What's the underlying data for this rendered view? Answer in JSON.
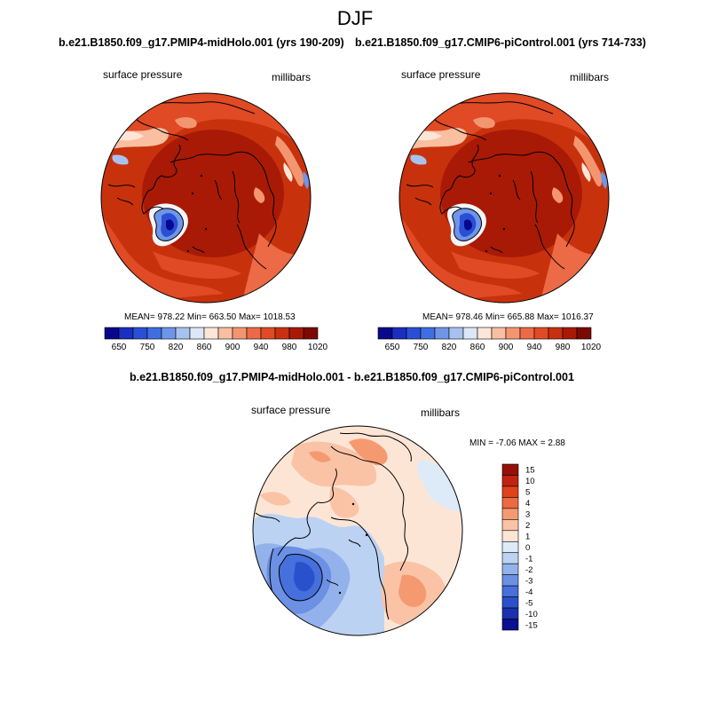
{
  "page": {
    "title": "DJF"
  },
  "panel_left": {
    "case_title": "b.e21.B1850.f09_g17.PMIP4-midHolo.001 (yrs 190-209)",
    "variable": "surface pressure",
    "units": "millibars",
    "stats": "MEAN= 978.22  Min= 663.50  Max= 1018.53"
  },
  "panel_right": {
    "case_title": "b.e21.B1850.f09_g17.CMIP6-piControl.001 (yrs 714-733)",
    "variable": "surface pressure",
    "units": "millibars",
    "stats": "MEAN= 978.46  Min= 665.88  Max= 1016.37"
  },
  "panel_diff": {
    "title": "b.e21.B1850.f09_g17.PMIP4-midHolo.001 - b.e21.B1850.f09_g17.CMIP6-piControl.001",
    "variable": "surface pressure",
    "units": "millibars",
    "stats": "MIN =  -7.06 MAX =   2.88"
  },
  "colorbar_horizontal": {
    "colors": [
      "#08088c",
      "#1a2fc0",
      "#2a4fd6",
      "#3f6ee0",
      "#6f95e8",
      "#a8c2f0",
      "#dce8f8",
      "#fde6d8",
      "#f9bfa0",
      "#f39670",
      "#ec6a45",
      "#e04a25",
      "#c8300f",
      "#a81a06",
      "#7a0a02"
    ],
    "labels": [
      "650",
      "750",
      "820",
      "860",
      "900",
      "940",
      "980",
      "1020"
    ]
  },
  "colorbar_vertical": {
    "colors": [
      "#96100a",
      "#c0240e",
      "#e0421c",
      "#ee6a40",
      "#f59a70",
      "#fac3a6",
      "#fde5d6",
      "#ddeaf8",
      "#bcd2f2",
      "#93b2ec",
      "#6b90e4",
      "#4670dc",
      "#2a50cc",
      "#1a30b0",
      "#0a1090"
    ],
    "labels": [
      "15",
      "10",
      "5",
      "4",
      "3",
      "2",
      "1",
      "0",
      "-1",
      "-2",
      "-3",
      "-4",
      "-5",
      "-10",
      "-15"
    ]
  }
}
